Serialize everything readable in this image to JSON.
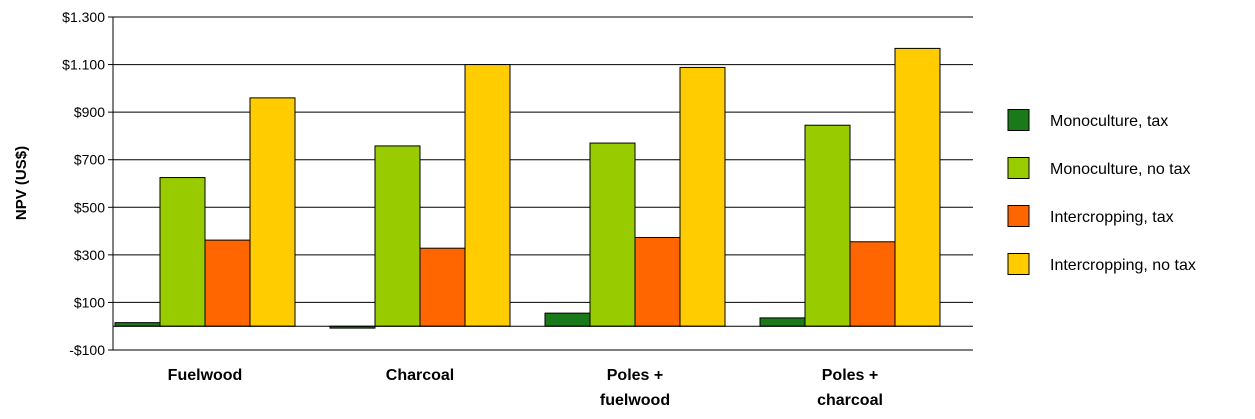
{
  "chart_data": {
    "type": "bar",
    "title": "",
    "xlabel": "",
    "ylabel": "NPV (US$)",
    "ylim": [
      -100,
      1300
    ],
    "yticks": [
      -100,
      100,
      300,
      500,
      700,
      900,
      1100,
      1300
    ],
    "ytick_labels": [
      "-$100",
      "$100",
      "$300",
      "$500",
      "$700",
      "$900",
      "$1.100",
      "$1.300"
    ],
    "grid": true,
    "legend_position": "right",
    "categories": [
      [
        "Fuelwood"
      ],
      [
        "Charcoal"
      ],
      [
        "Poles +",
        "fuelwood"
      ],
      [
        "Poles +",
        "charcoal"
      ]
    ],
    "series": [
      {
        "name": "Monoculture, tax",
        "color": "#1a7a1a",
        "values": [
          15,
          -8,
          55,
          35
        ]
      },
      {
        "name": "Monoculture, no tax",
        "color": "#99cc00",
        "values": [
          625,
          758,
          770,
          845
        ]
      },
      {
        "name": "Intercropping, tax",
        "color": "#ff6600",
        "values": [
          362,
          328,
          373,
          355
        ]
      },
      {
        "name": "Intercropping, no tax",
        "color": "#ffcc00",
        "values": [
          960,
          1100,
          1088,
          1168
        ]
      }
    ]
  }
}
